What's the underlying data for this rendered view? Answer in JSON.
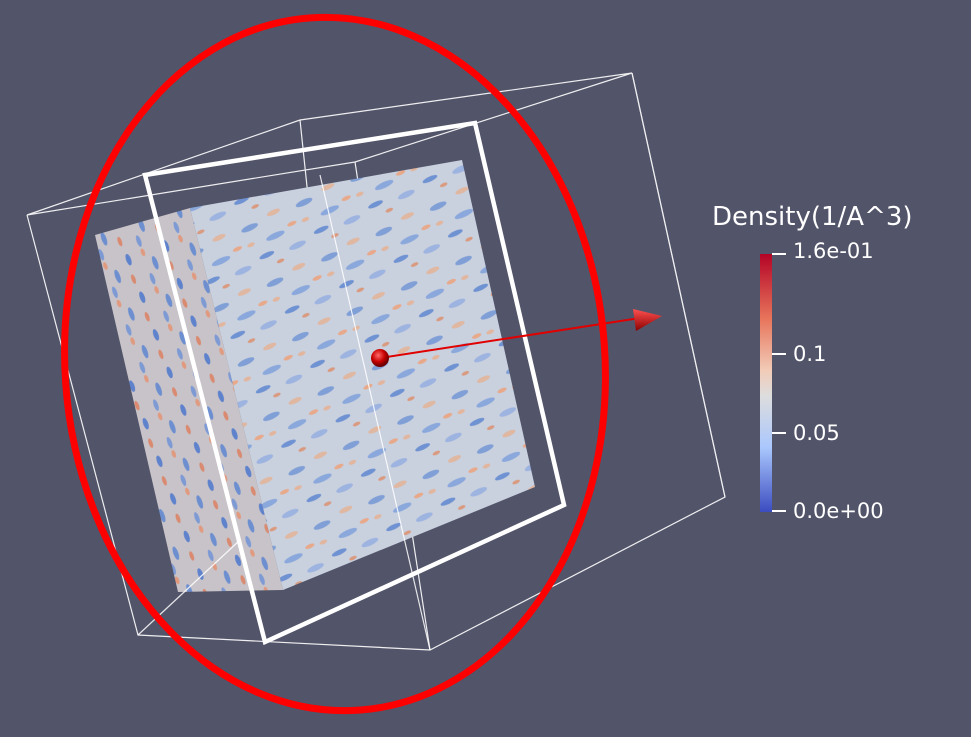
{
  "colors": {
    "background": "#525469",
    "selection_ring": "#ff0000",
    "box_outline": "#ffffff",
    "arrow": "#d40000",
    "colormap_low": "#3b4cc0",
    "colormap_mid": "#dddddd",
    "colormap_high": "#b40426"
  },
  "scene": {
    "objects": [
      "density-volume",
      "bounding-box",
      "clip-plane-widget",
      "normal-arrow",
      "center-sphere",
      "rotation-ring"
    ]
  },
  "legend": {
    "title": "Density(1/A^3)",
    "max_label": "1.6e-01",
    "tick1_label": "0.1",
    "tick2_label": "0.05",
    "min_label": "0.0e+00",
    "range": [
      0.0,
      0.16
    ],
    "ticks": [
      0.16,
      0.1,
      0.05,
      0.0
    ],
    "colormap": "Cool to Warm"
  }
}
